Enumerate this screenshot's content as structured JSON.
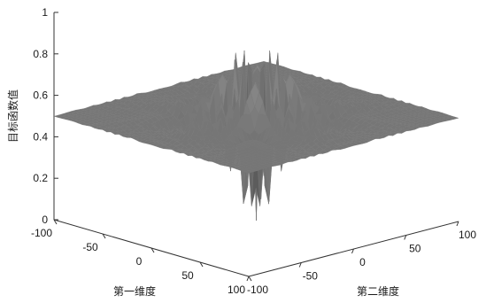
{
  "chart_data": {
    "type": "surface",
    "title": "",
    "xlabel": "第一维度",
    "ylabel": "第二维度",
    "zlabel": "目标函数值",
    "x_ticks": [
      -100,
      -50,
      0,
      50,
      100
    ],
    "y_ticks": [
      -100,
      -50,
      0,
      50,
      100
    ],
    "z_ticks": [
      0,
      0.2,
      0.4,
      0.6,
      0.8,
      1
    ],
    "xlim": [
      -100,
      100
    ],
    "ylim": [
      -100,
      100
    ],
    "zlim": [
      0,
      1
    ],
    "surface": {
      "function": "Schaffer F6",
      "baseline_value": 0.5,
      "center_value": 1.0,
      "min_near_center": 0.0,
      "colors": {
        "surface": "#9a9a9a",
        "edge": "#6b6b6b"
      }
    },
    "grid": false
  }
}
